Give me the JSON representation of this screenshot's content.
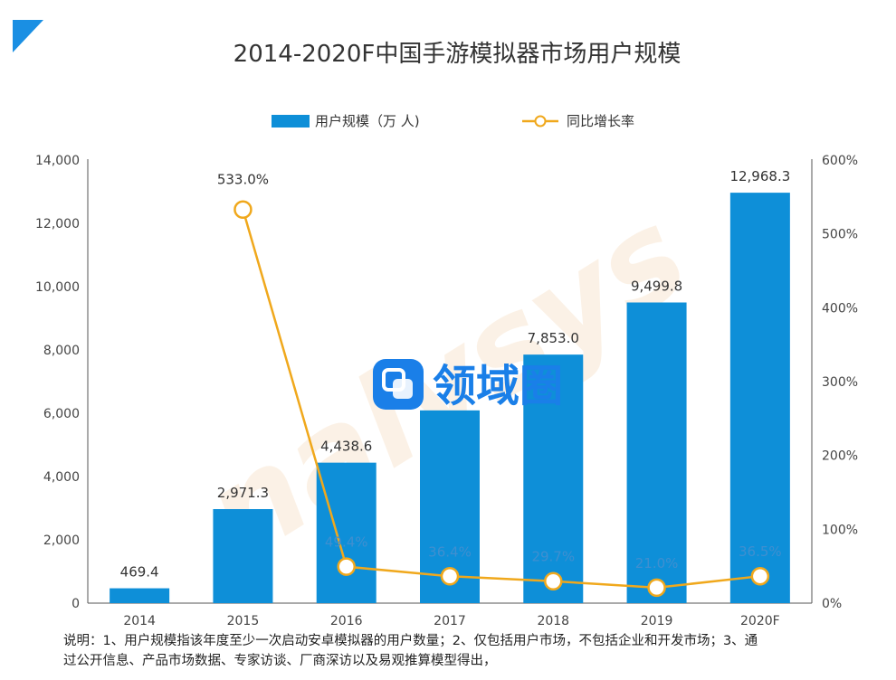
{
  "chart_data": {
    "type": "bar",
    "title": "2014-2020F中国手游模拟器市场用户规模",
    "categories": [
      "2014",
      "2015",
      "2016",
      "2017",
      "2018",
      "2019",
      "2020F"
    ],
    "series": [
      {
        "name": "用户规模（万 人)",
        "type": "bar",
        "axis": "left",
        "color": "#0e8fd8",
        "values": [
          469.4,
          2971.3,
          4438.6,
          6090.0,
          7853.0,
          9499.8,
          12968.3
        ],
        "labels": [
          "469.4",
          "2,971.3",
          "4,438.6",
          "",
          "7,853.0",
          "9,499.8",
          "12,968.3"
        ]
      },
      {
        "name": "同比增长率",
        "type": "line",
        "axis": "right",
        "color": "#f0a81c",
        "values": [
          null,
          533.0,
          49.4,
          36.4,
          29.7,
          21.0,
          36.5
        ],
        "labels": [
          "",
          "533.0%",
          "49.4%",
          "36.4%",
          "29.7%",
          "21.0%",
          "36.5%"
        ]
      }
    ],
    "y_left": {
      "ylim": [
        0,
        14000
      ],
      "ticks": [
        "0",
        "2,000",
        "4,000",
        "6,000",
        "8,000",
        "10,000",
        "12,000",
        "14,000"
      ]
    },
    "y_right": {
      "ylim": [
        0,
        600
      ],
      "ticks": [
        "0%",
        "100%",
        "200%",
        "300%",
        "400%",
        "500%",
        "600%"
      ]
    },
    "grid": false,
    "legend_position": "top-center"
  },
  "watermark": {
    "text": "领域圈",
    "ghost": "nalysys"
  },
  "footnote": {
    "line1": "说明：1、用户规模指该年度至少一次启动安卓模拟器的用户数量；2、仅包括用户市场，不包括企业和开发市场；3、通",
    "line2": "过公开信息、产品市场数据、专家访谈、厂商深访以及易观推算模型得出，"
  }
}
